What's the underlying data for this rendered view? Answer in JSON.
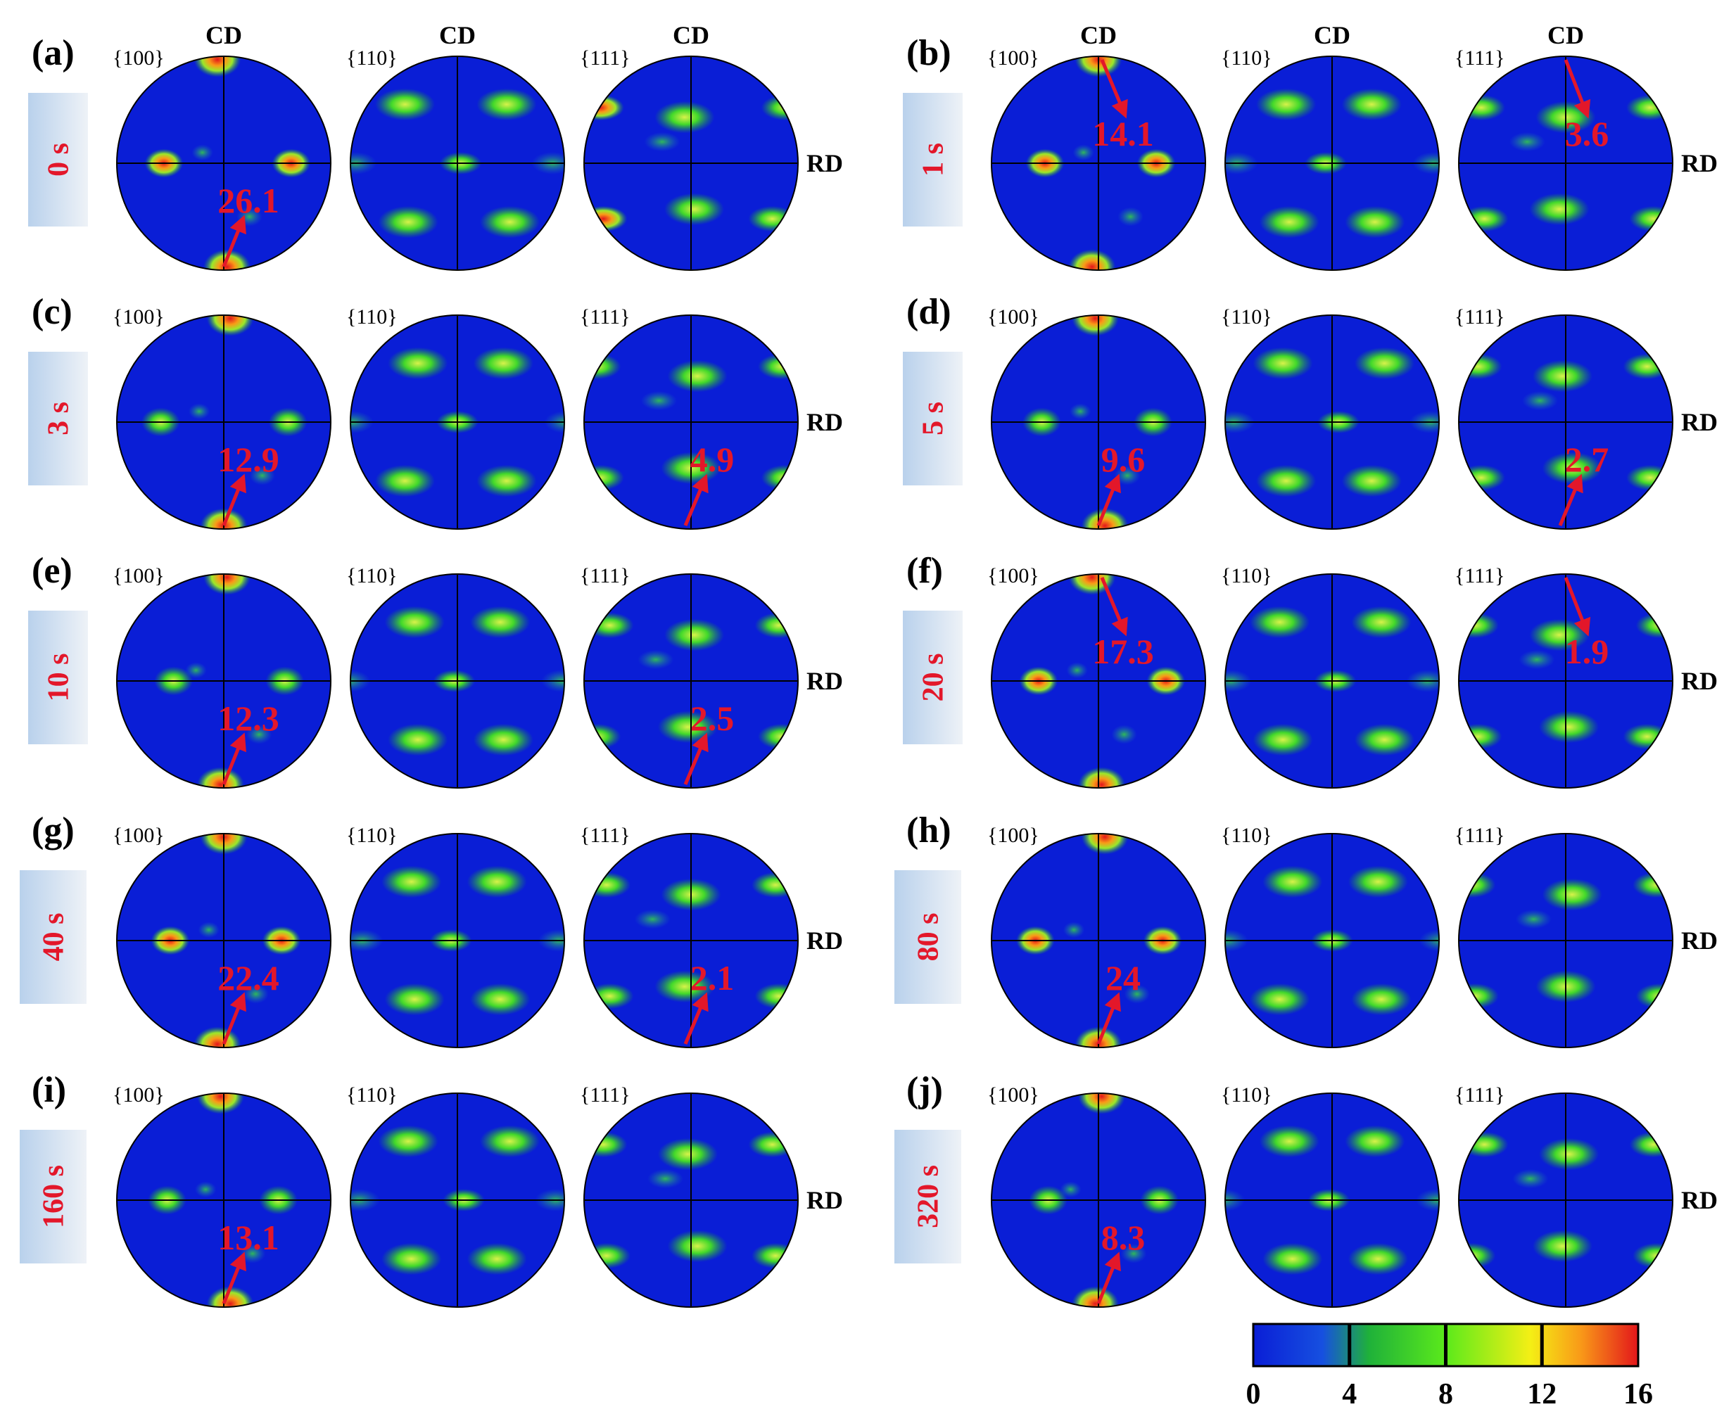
{
  "axes": {
    "cd": "CD",
    "rd": "RD"
  },
  "planes": [
    "{100}",
    "{110}",
    "{111}"
  ],
  "panels": [
    {
      "letter": "(a)",
      "time": "0 s",
      "max100": "26.1",
      "max111": "",
      "show_cd": true
    },
    {
      "letter": "(b)",
      "time": "1 s",
      "max100": "14.1",
      "max111": "3.6",
      "show_cd": true
    },
    {
      "letter": "(c)",
      "time": "3 s",
      "max100": "12.9",
      "max111": "4.9",
      "show_cd": false
    },
    {
      "letter": "(d)",
      "time": "5 s",
      "max100": "9.6",
      "max111": "2.7",
      "show_cd": false
    },
    {
      "letter": "(e)",
      "time": "10 s",
      "max100": "12.3",
      "max111": "2.5",
      "show_cd": false
    },
    {
      "letter": "(f)",
      "time": "20 s",
      "max100": "17.3",
      "max111": "1.9",
      "show_cd": false
    },
    {
      "letter": "(g)",
      "time": "40 s",
      "max100": "22.4",
      "max111": "2.1",
      "show_cd": false
    },
    {
      "letter": "(h)",
      "time": "80 s",
      "max100": "24",
      "max111": "",
      "show_cd": false
    },
    {
      "letter": "(i)",
      "time": "160 s",
      "max100": "13.1",
      "max111": "",
      "show_cd": false
    },
    {
      "letter": "(j)",
      "time": "320 s",
      "max100": "8.3",
      "max111": "",
      "show_cd": false
    }
  ],
  "colorbar": {
    "ticks": [
      "0",
      "4",
      "8",
      "12",
      "16"
    ],
    "colors": [
      "#0a1ed6",
      "#1650e0",
      "#1fb13a",
      "#5bea1b",
      "#f4ef15",
      "#f99a18",
      "#e3161b"
    ]
  },
  "colors": {
    "background": "#0a1ed6",
    "label_red": "#e3172a",
    "tab_gradient_start": "#b9d1ec",
    "tab_gradient_end": "#eef2f7"
  }
}
